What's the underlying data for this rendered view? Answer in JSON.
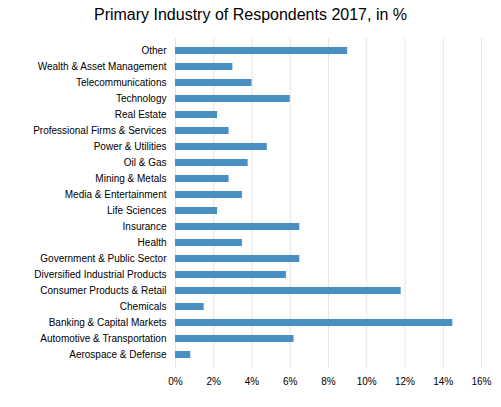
{
  "chart_data": {
    "type": "bar",
    "orientation": "horizontal",
    "title": "Primary Industry of Respondents 2017, in %",
    "categories": [
      "Aerospace & Defense",
      "Automotive & Transportation",
      "Banking & Capital Markets",
      "Chemicals",
      "Consumer Products & Retail",
      "Diversified Industrial Products",
      "Government & Public Sector",
      "Health",
      "Insurance",
      "Life Sciences",
      "Media & Entertainment",
      "Mining & Metals",
      "Oil & Gas",
      "Power & Utilities",
      "Professional Firms & Services",
      "Real Estate",
      "Technology",
      "Telecommunications",
      "Wealth & Asset Management",
      "Other"
    ],
    "values": [
      0.8,
      6.2,
      14.5,
      1.5,
      11.8,
      5.8,
      6.5,
      3.5,
      6.5,
      2.2,
      3.5,
      2.8,
      3.8,
      4.8,
      2.8,
      2.2,
      6.0,
      4.0,
      3.0,
      9.0
    ],
    "color": "#4a8fc4",
    "xlim": [
      0,
      16
    ],
    "xticks": [
      {
        "value": 0,
        "label": "0%"
      },
      {
        "value": 2,
        "label": "2%"
      },
      {
        "value": 4,
        "label": "4%"
      },
      {
        "value": 6,
        "label": "6%"
      },
      {
        "value": 8,
        "label": "8%"
      },
      {
        "value": 10,
        "label": "10%"
      },
      {
        "value": 12,
        "label": "12%"
      },
      {
        "value": 14,
        "label": "14%"
      },
      {
        "value": 16,
        "label": "16%"
      }
    ],
    "grid": true
  }
}
